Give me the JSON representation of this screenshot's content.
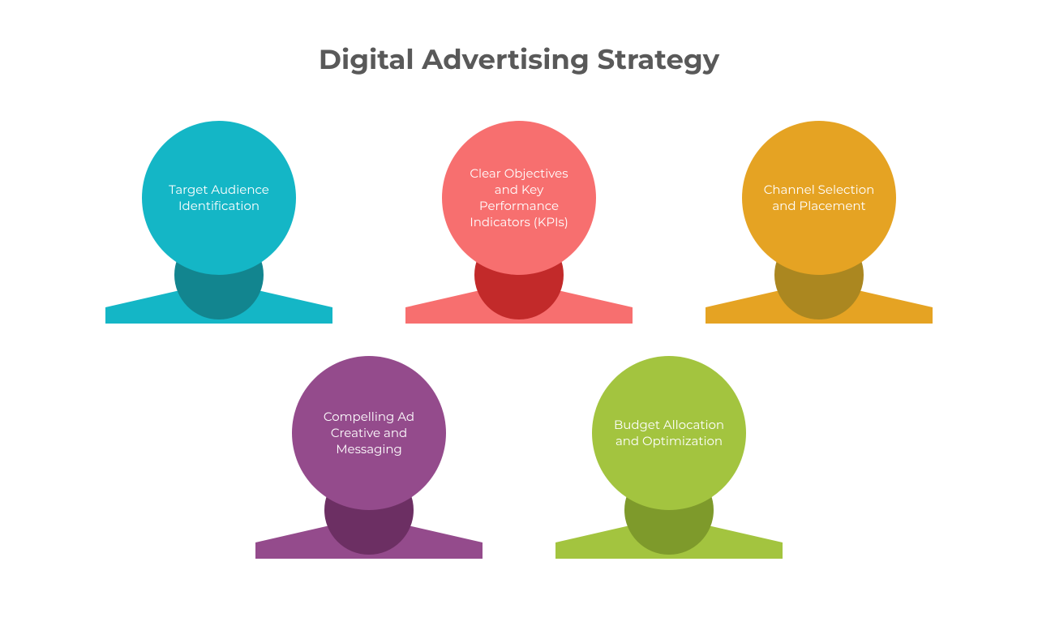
{
  "title": "Digital Advertising Strategy",
  "title_color": "#595959",
  "title_fontsize": 34,
  "background_color": "#ffffff",
  "circle_diameter": 190,
  "label_fontsize": 15,
  "label_color": "#ffffff",
  "rows": {
    "top_gap": 90,
    "bottom_gap": 90
  },
  "items": [
    {
      "id": "target-audience",
      "row": "top",
      "label": "Target Audience Identification",
      "circle_color": "#14b6c6",
      "dark_color": "#12858f",
      "base_color": "#14b6c6"
    },
    {
      "id": "objectives-kpis",
      "row": "top",
      "label": "Clear Objectives and Key Performance Indicators (KPIs)",
      "circle_color": "#f76f6f",
      "dark_color": "#c22a2a",
      "base_color": "#f76f6f"
    },
    {
      "id": "channel-selection",
      "row": "top",
      "label": "Channel Selection and Placement",
      "circle_color": "#e5a323",
      "dark_color": "#ab8720",
      "base_color": "#e5a323"
    },
    {
      "id": "ad-creative",
      "row": "bottom",
      "label": "Compelling Ad Creative and Messaging",
      "circle_color": "#944b8c",
      "dark_color": "#6c2f63",
      "base_color": "#944b8c"
    },
    {
      "id": "budget-allocation",
      "row": "bottom",
      "label": "Budget Allocation and Optimization",
      "circle_color": "#a3c43f",
      "dark_color": "#7e9a2b",
      "base_color": "#a3c43f"
    }
  ]
}
